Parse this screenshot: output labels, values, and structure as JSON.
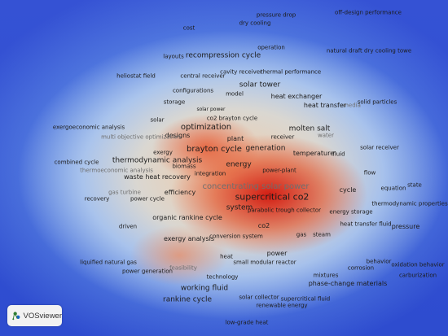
{
  "app": {
    "name": "VOSviewer",
    "logo_icon": "vosviewer-logo-icon"
  },
  "colors": {
    "background": "#2f4fd3",
    "hot": "#d8140a",
    "warm": "#f0a070",
    "cool": "#b4d0f0"
  },
  "terms": [
    {
      "text": "pressure drop"
    },
    {
      "text": "off-design performance"
    },
    {
      "text": "dry cooling"
    },
    {
      "text": "cost"
    },
    {
      "text": "operation"
    },
    {
      "text": "layouts"
    },
    {
      "text": "recompression cycle"
    },
    {
      "text": "natural draft dry cooling towe"
    },
    {
      "text": "cavity receiver"
    },
    {
      "text": "thermal performance"
    },
    {
      "text": "heliostat field"
    },
    {
      "text": "central receiver"
    },
    {
      "text": "solar tower"
    },
    {
      "text": "configurations"
    },
    {
      "text": "model"
    },
    {
      "text": "heat exchanger"
    },
    {
      "text": "storage"
    },
    {
      "text": "heat transfer"
    },
    {
      "text": "media"
    },
    {
      "text": "solid particles"
    },
    {
      "text": "solar power"
    },
    {
      "text": "co2 brayton cycle"
    },
    {
      "text": "solar"
    },
    {
      "text": "exergoeconomic analysis"
    },
    {
      "text": "optimization"
    },
    {
      "text": "molten salt"
    },
    {
      "text": "designs"
    },
    {
      "text": "multi objective optimization"
    },
    {
      "text": "receiver"
    },
    {
      "text": "water"
    },
    {
      "text": "plant"
    },
    {
      "text": "brayton cycle"
    },
    {
      "text": "generation"
    },
    {
      "text": "exergy"
    },
    {
      "text": "temperature"
    },
    {
      "text": "fluid"
    },
    {
      "text": "solar receiver"
    },
    {
      "text": "thermodynamic analysis"
    },
    {
      "text": "combined cycle"
    },
    {
      "text": "biomass"
    },
    {
      "text": "energy"
    },
    {
      "text": "thermoeconomic analysis"
    },
    {
      "text": "waste heat recovery"
    },
    {
      "text": "power-plant"
    },
    {
      "text": "integration"
    },
    {
      "text": "flow"
    },
    {
      "text": "concentrating solar power"
    },
    {
      "text": "equation"
    },
    {
      "text": "state"
    },
    {
      "text": "gas turbine"
    },
    {
      "text": "efficiency"
    },
    {
      "text": "cycle"
    },
    {
      "text": "recovery"
    },
    {
      "text": "power cycle"
    },
    {
      "text": "supercritical co2"
    },
    {
      "text": "thermodynamic properties"
    },
    {
      "text": "system"
    },
    {
      "text": "parabolic trough collector"
    },
    {
      "text": "energy storage"
    },
    {
      "text": "organic rankine cycle"
    },
    {
      "text": "co2"
    },
    {
      "text": "heat transfer fluid"
    },
    {
      "text": "pressure"
    },
    {
      "text": "driven"
    },
    {
      "text": "gas"
    },
    {
      "text": "steam"
    },
    {
      "text": "conversion system"
    },
    {
      "text": "exergy analysis"
    },
    {
      "text": "power"
    },
    {
      "text": "heat"
    },
    {
      "text": "behavior"
    },
    {
      "text": "oxidation behavior"
    },
    {
      "text": "small modular reactor"
    },
    {
      "text": "liquified natural gas"
    },
    {
      "text": "corrosion"
    },
    {
      "text": "feasibility"
    },
    {
      "text": "power generation"
    },
    {
      "text": "mixtures"
    },
    {
      "text": "carburization"
    },
    {
      "text": "technology"
    },
    {
      "text": "phase-change materials"
    },
    {
      "text": "working fluid"
    },
    {
      "text": "solar collector"
    },
    {
      "text": "supercritical fluid"
    },
    {
      "text": "rankine cycle"
    },
    {
      "text": "renewable energy"
    },
    {
      "text": "low-grade heat"
    }
  ]
}
